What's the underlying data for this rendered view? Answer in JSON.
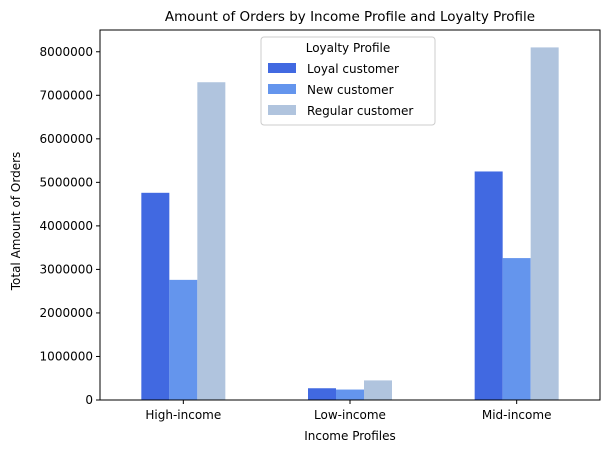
{
  "chart_data": {
    "type": "bar",
    "title": "Amount of Orders by Income Profile and Loyalty Profile",
    "xlabel": "Income Profiles",
    "ylabel": "Total Amount of Orders",
    "categories": [
      "High-income",
      "Low-income",
      "Mid-income"
    ],
    "series": [
      {
        "name": "Loyal customer",
        "color": "#4169E1",
        "values": [
          4760000,
          270000,
          5250000
        ]
      },
      {
        "name": "New customer",
        "color": "#6495ED",
        "values": [
          2760000,
          240000,
          3260000
        ]
      },
      {
        "name": "Regular customer",
        "color": "#B0C4DE",
        "values": [
          7300000,
          450000,
          8100000
        ]
      }
    ],
    "ylim": [
      0,
      8500000
    ],
    "yticks": [
      0,
      1000000,
      2000000,
      3000000,
      4000000,
      5000000,
      6000000,
      7000000,
      8000000
    ],
    "ytick_labels": [
      "0",
      "1000000",
      "2000000",
      "3000000",
      "4000000",
      "5000000",
      "6000000",
      "7000000",
      "8000000"
    ],
    "legend": {
      "title": "Loyalty Profile",
      "position": "upper-center"
    },
    "grid": false
  }
}
